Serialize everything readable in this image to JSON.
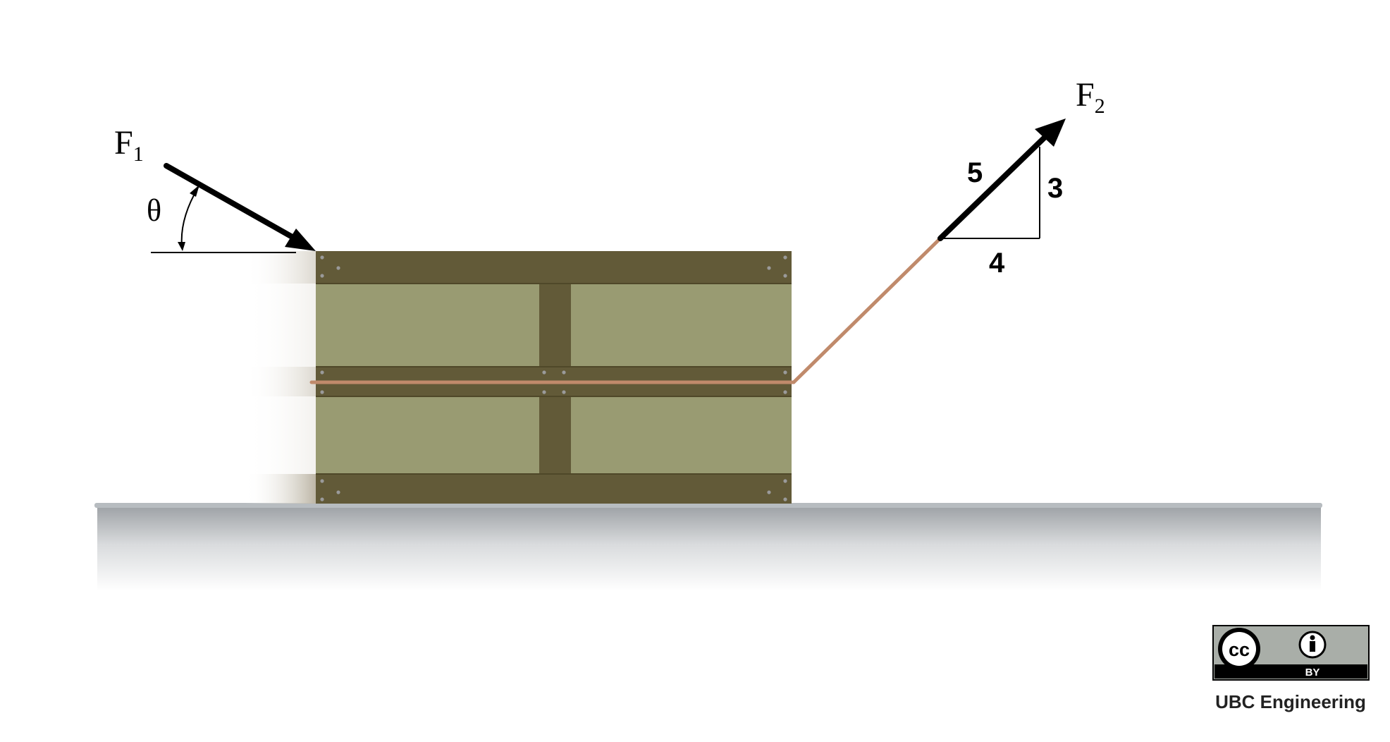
{
  "forces": {
    "f1": {
      "symbol": "F",
      "subscript": "1"
    },
    "f2": {
      "symbol": "F",
      "subscript": "2"
    },
    "angle_symbol": "θ"
  },
  "slope_triangle": {
    "hypotenuse": "5",
    "rise": "3",
    "run": "4"
  },
  "license": {
    "cc_mark": "cc",
    "by_label": "BY",
    "attribution": "UBC Engineering"
  },
  "colors": {
    "crate_frame": "#625a38",
    "crate_panel": "#999b72",
    "rope": "#c08a6b",
    "ground_top": "#b7bcc0",
    "arrow": "#000000"
  }
}
